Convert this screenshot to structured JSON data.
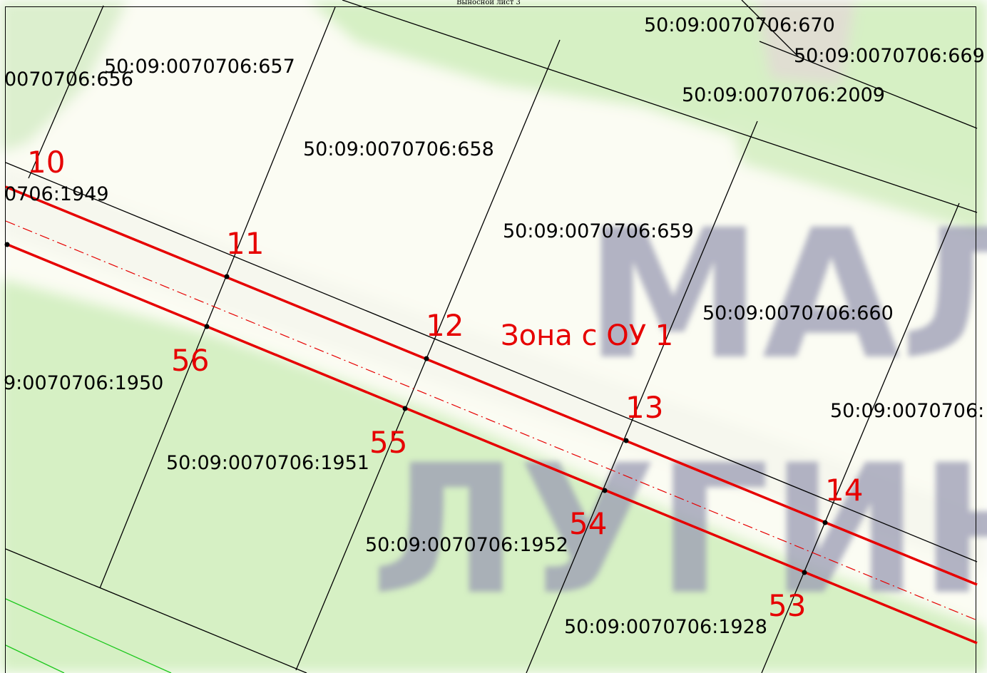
{
  "sheet": {
    "title": "Выносной лист 3"
  },
  "background": {
    "label_line_1": "МАЛ",
    "label_line_2": "ЛУГИН",
    "colors": {
      "paper": "#fcfcf2",
      "green": "#d6f0c4",
      "water": "#d4d6e6"
    }
  },
  "parcels": [
    "50:09:0070706:670",
    "50:09:0070706:669",
    "50:09:0070706:2009",
    "50:09:0070706:657",
    "0070706:656",
    "50:09:0070706:658",
    "50:09:0070706:659",
    "50:09:0070706:660",
    "0706:1949",
    "9:0070706:1950",
    "50:09:0070706:1951",
    "50:09:0070706:1952",
    "50:09:0070706:1928",
    "50:09:0070706:"
  ],
  "points": [
    "10",
    "11",
    "12",
    "13",
    "14",
    "53",
    "54",
    "55",
    "56"
  ],
  "zone": {
    "label": "Зона с ОУ 1",
    "color": "#e60000"
  }
}
